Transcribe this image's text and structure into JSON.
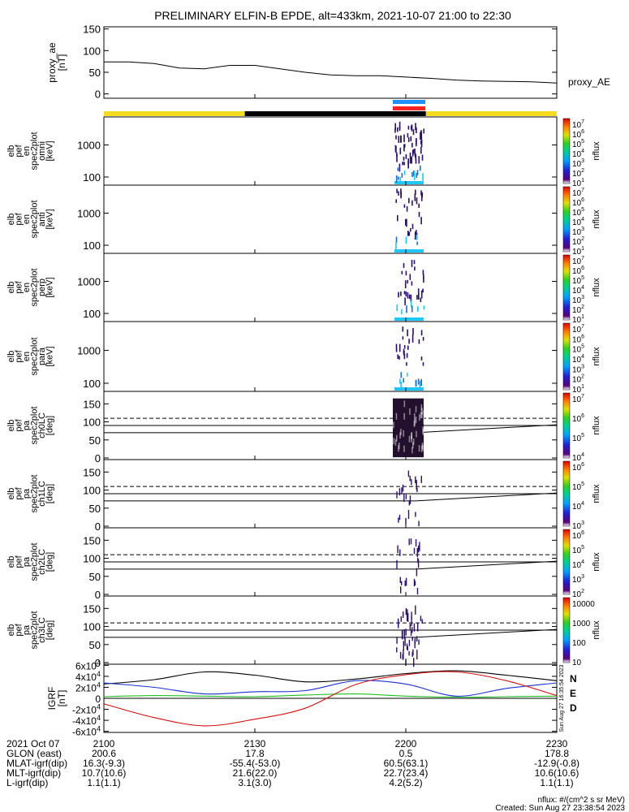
{
  "title": "PRELIMINARY ELFIN-B EPDE, alt=433km, 2021-10-07 21:00 to 22:30",
  "colors": {
    "yellow_bar": "#f5dc20",
    "black_bar": "#000000",
    "blue_marker": "#1e90ff",
    "red_marker": "#ff2020",
    "spec_dark": "#2a0f6e",
    "spec_cyan": "#1ec8ff",
    "spec_blue": "#1a6be0",
    "b_black": "#000000",
    "b_blue": "#1a2fd0",
    "b_green": "#20c020",
    "b_red": "#d01010"
  },
  "chart_data": [
    {
      "type": "line",
      "name": "proxy_ae",
      "ylabel": [
        "proxy_ae",
        "[nT]"
      ],
      "legend": "proxy_AE",
      "yticks": [
        "150",
        "100",
        "50",
        "0"
      ],
      "ylim": [
        -10,
        155
      ],
      "x_minutes": [
        0,
        5,
        10,
        15,
        20,
        25,
        30,
        35,
        40,
        45,
        50,
        55,
        60,
        65,
        70,
        75,
        80,
        85,
        90
      ],
      "values": [
        74,
        74,
        70,
        60,
        58,
        66,
        66,
        58,
        50,
        44,
        42,
        42,
        39,
        36,
        32,
        30,
        29,
        28,
        25
      ]
    },
    {
      "type": "heatmap",
      "name": "elb_pef_en_spec2plot_omni",
      "ylabel": [
        "elb",
        "pef",
        "en",
        "spec2plot",
        "omni",
        "[keV]"
      ],
      "yticks": [
        "1000",
        "100"
      ],
      "zlabel": "nflux",
      "zticks": [
        "10^7",
        "10^6",
        "10^5",
        "10^4",
        "10^3",
        "10^2",
        "10^1"
      ]
    },
    {
      "type": "heatmap",
      "name": "elb_pef_en_spec2plot_anti",
      "ylabel": [
        "elb",
        "pef",
        "en",
        "spec2plot",
        "anti",
        "[keV]"
      ],
      "yticks": [
        "1000",
        "100"
      ],
      "zlabel": "nflux",
      "zticks": [
        "10^7",
        "10^6",
        "10^5",
        "10^4",
        "10^3",
        "10^2",
        "10^1"
      ]
    },
    {
      "type": "heatmap",
      "name": "elb_pef_en_spec2plot_perp",
      "ylabel": [
        "elb",
        "pef",
        "en",
        "spec2plot",
        "perp",
        "[keV]"
      ],
      "yticks": [
        "1000",
        "100"
      ],
      "zlabel": "nflux",
      "zticks": [
        "10^7",
        "10^6",
        "10^5",
        "10^4",
        "10^3",
        "10^2",
        "10^1"
      ]
    },
    {
      "type": "heatmap",
      "name": "elb_pef_en_spec2plot_para",
      "ylabel": [
        "elb",
        "pef",
        "en",
        "spec2plot",
        "para",
        "[keV]"
      ],
      "yticks": [
        "1000",
        "100"
      ],
      "zlabel": "nflux",
      "zticks": [
        "10^7",
        "10^6",
        "10^5",
        "10^4",
        "10^3",
        "10^2",
        "10^1"
      ]
    },
    {
      "type": "heatmap",
      "name": "elb_pef_pa_spec2plot_ch0LC",
      "ylabel": [
        "elb",
        "pef",
        "pa",
        "spec2plot",
        "ch0LC",
        "[deg]"
      ],
      "yticks": [
        "150",
        "100",
        "50",
        "0"
      ],
      "zlabel": "nflux",
      "zticks": [
        "10^7",
        "10^6",
        "10^5",
        "10^4"
      ]
    },
    {
      "type": "heatmap",
      "name": "elb_pef_pa_spec2plot_ch1LC",
      "ylabel": [
        "elb",
        "pef",
        "pa",
        "spec2plot",
        "ch1LC",
        "[deg]"
      ],
      "yticks": [
        "150",
        "100",
        "50",
        "0"
      ],
      "zlabel": "nflux",
      "zticks": [
        "10^6",
        "10^5",
        "10^4",
        "10^3"
      ]
    },
    {
      "type": "heatmap",
      "name": "elb_pef_pa_spec2plot_ch2LC",
      "ylabel": [
        "elb",
        "pef",
        "pa",
        "spec2plot",
        "ch2LC",
        "[deg]"
      ],
      "yticks": [
        "150",
        "100",
        "50",
        "0"
      ],
      "zlabel": "nflux",
      "zticks": [
        "10^6",
        "10^5",
        "10^4",
        "10^3",
        "10^2"
      ]
    },
    {
      "type": "heatmap",
      "name": "elb_pef_pa_spec2plot_ch3LC",
      "ylabel": [
        "elb",
        "pef",
        "pa",
        "spec2plot",
        "ch3LC",
        "[deg]"
      ],
      "yticks": [
        "150",
        "100",
        "50",
        "0"
      ],
      "zlabel": "nflux",
      "zticks": [
        "10000",
        "1000",
        "100",
        "10"
      ]
    },
    {
      "type": "line",
      "name": "IGRF",
      "ylabel": [
        "IGRF",
        "[nT]"
      ],
      "yticks": [
        "6x10^4",
        "4x10^4",
        "2x10^4",
        "0",
        "-2x10^4",
        "-4x10^4",
        "-6x10^4"
      ],
      "ylim": [
        -62000,
        62000
      ],
      "legend": [
        "N",
        "E",
        "D"
      ],
      "side_text": "Sun Aug 27 16:35:54 2023",
      "x_minutes": [
        0,
        10,
        20,
        30,
        40,
        50,
        60,
        70,
        80,
        90
      ],
      "series": [
        {
          "name": "N",
          "values": [
            26000,
            34000,
            48000,
            42000,
            30000,
            35000,
            45000,
            50000,
            42000,
            32000
          ]
        },
        {
          "name": "E",
          "values": [
            28000,
            20000,
            8000,
            12000,
            14000,
            32000,
            26000,
            4000,
            18000,
            28000
          ]
        },
        {
          "name": "D",
          "values": [
            3000,
            5000,
            4000,
            3000,
            6000,
            8000,
            4000,
            2000,
            3000,
            4000
          ]
        },
        {
          "name": "",
          "values": [
            -10000,
            -35000,
            -50000,
            -38000,
            -18000,
            25000,
            43000,
            48000,
            32000,
            5000
          ]
        }
      ]
    }
  ],
  "time_axis": {
    "row_labels": [
      "2021 Oct 07",
      "GLON (east)",
      "MLAT-igrf(dip)",
      "MLT-igrf(dip)",
      "L-igrf(dip)"
    ],
    "columns": [
      {
        "tick": "2100",
        "values": [
          "200.6",
          "16.3(-9.3)",
          "10.7(10.6)",
          "1.1(1.1)"
        ]
      },
      {
        "tick": "2130",
        "values": [
          "17.8",
          "-55.4(-53.0)",
          "21.6(22.0)",
          "3.1(3.0)"
        ]
      },
      {
        "tick": "2200",
        "values": [
          "0.5",
          "60.5(63.1)",
          "22.7(23.4)",
          "4.2(5.2)"
        ]
      },
      {
        "tick": "2230",
        "values": [
          "178.8",
          "-12.9(-0.8)",
          "10.6(10.6)",
          "1.1(1.1)"
        ]
      }
    ]
  },
  "footer": {
    "units": "nflux: #/(cm^2 s sr MeV)",
    "created": "Created: Sun Aug 27 23:38:54 2023"
  }
}
